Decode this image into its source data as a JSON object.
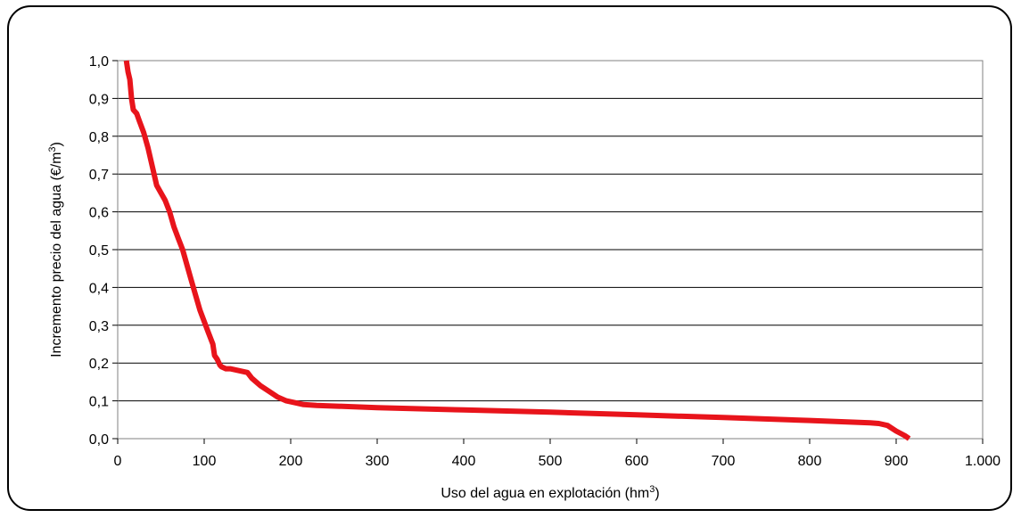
{
  "chart_data": {
    "type": "line",
    "xlabel": "Uso del agua en explotación (hm",
    "xlabel_sup": "3",
    "xlabel_tail": ")",
    "ylabel": "Incremento precio del agua (€/m",
    "ylabel_sup": "3",
    "ylabel_tail": ")",
    "xlim": [
      0,
      1000
    ],
    "ylim": [
      0,
      1.0
    ],
    "grid": "horizontal",
    "legend": "none",
    "x_ticks": [
      0,
      100,
      200,
      300,
      400,
      500,
      600,
      700,
      800,
      900,
      1000
    ],
    "x_tick_labels": [
      "0",
      "100",
      "200",
      "300",
      "400",
      "500",
      "600",
      "700",
      "800",
      "900",
      "1.000"
    ],
    "y_ticks": [
      0,
      0.1,
      0.2,
      0.3,
      0.4,
      0.5,
      0.6,
      0.7,
      0.8,
      0.9,
      1.0
    ],
    "y_tick_labels": [
      "0,0",
      "0,1",
      "0,2",
      "0,3",
      "0,4",
      "0,5",
      "0,6",
      "0,7",
      "0,8",
      "0,9",
      "1,0"
    ],
    "series": [
      {
        "color": "#e8141b",
        "x": [
          10,
          12,
          14,
          16,
          18,
          22,
          25,
          30,
          35,
          40,
          45,
          50,
          55,
          60,
          65,
          70,
          75,
          80,
          85,
          90,
          95,
          100,
          105,
          110,
          112,
          115,
          118,
          120,
          125,
          130,
          140,
          150,
          155,
          165,
          175,
          185,
          195,
          205,
          215,
          230,
          300,
          400,
          500,
          600,
          700,
          800,
          870,
          880,
          890,
          900,
          910,
          915
        ],
        "y": [
          1.0,
          0.97,
          0.95,
          0.9,
          0.87,
          0.86,
          0.84,
          0.81,
          0.77,
          0.72,
          0.67,
          0.65,
          0.63,
          0.6,
          0.56,
          0.53,
          0.5,
          0.46,
          0.42,
          0.38,
          0.34,
          0.31,
          0.28,
          0.25,
          0.22,
          0.21,
          0.195,
          0.19,
          0.185,
          0.185,
          0.18,
          0.175,
          0.16,
          0.14,
          0.125,
          0.11,
          0.1,
          0.095,
          0.09,
          0.088,
          0.082,
          0.076,
          0.07,
          0.063,
          0.056,
          0.048,
          0.042,
          0.04,
          0.035,
          0.02,
          0.008,
          0.0
        ]
      }
    ]
  }
}
